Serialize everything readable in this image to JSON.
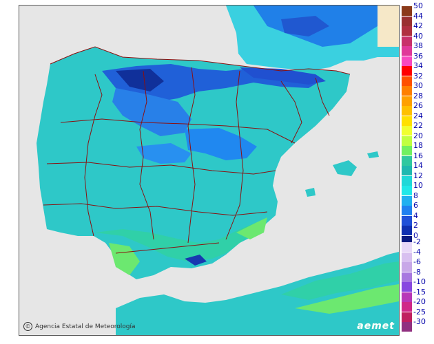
{
  "credit": {
    "text": "Agencia Estatal de Meteorología",
    "icon": "copyright-icon"
  },
  "logo": {
    "text": "aemet"
  },
  "legend_top": {
    "items": [
      {
        "label": "50",
        "color": "#8b3a1a"
      },
      {
        "label": "44",
        "color": "#9a3030"
      },
      {
        "label": "42",
        "color": "#b03040"
      },
      {
        "label": "40",
        "color": "#c8306a"
      },
      {
        "label": "38",
        "color": "#e0389a"
      },
      {
        "label": "36",
        "color": "#f848c0"
      },
      {
        "label": "34",
        "color": "#ff0000"
      },
      {
        "label": "32",
        "color": "#ff5000"
      },
      {
        "label": "30",
        "color": "#ff8000"
      },
      {
        "label": "28",
        "color": "#ffa000"
      },
      {
        "label": "26",
        "color": "#ffc000"
      },
      {
        "label": "24",
        "color": "#ffe000"
      },
      {
        "label": "22",
        "color": "#f0ff30"
      },
      {
        "label": "20",
        "color": "#c0ff40"
      },
      {
        "label": "18",
        "color": "#70f060"
      },
      {
        "label": "16",
        "color": "#30c8a0"
      },
      {
        "label": "14",
        "color": "#20b8b0"
      },
      {
        "label": "12",
        "color": "#20d8d8"
      },
      {
        "label": "10",
        "color": "#20e8e8"
      },
      {
        "label": "8",
        "color": "#20b0f0"
      },
      {
        "label": "6",
        "color": "#2080f0"
      },
      {
        "label": "4",
        "color": "#2050d8"
      },
      {
        "label": "2",
        "color": "#1030b0"
      },
      {
        "label": "0",
        "color": "#0a1a80"
      }
    ]
  },
  "legend_bottom": {
    "items": [
      {
        "label": "-2",
        "color": "#e8d8f8"
      },
      {
        "label": "-4",
        "color": "#d8c0f0"
      },
      {
        "label": "-6",
        "color": "#c8a8e8"
      },
      {
        "label": "-8",
        "color": "#a878e0"
      },
      {
        "label": "-10",
        "color": "#8848e0"
      },
      {
        "label": "-15",
        "color": "#b838b8"
      },
      {
        "label": "-20",
        "color": "#d02888"
      },
      {
        "label": "-25",
        "color": "#c02060"
      },
      {
        "label": "-30",
        "color": "#903080"
      }
    ]
  }
}
